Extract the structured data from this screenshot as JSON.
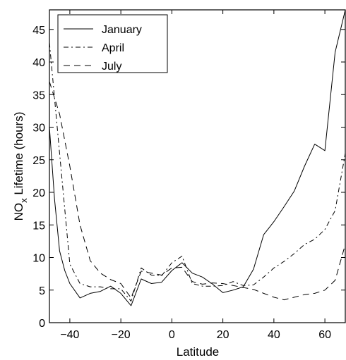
{
  "chart_data": {
    "type": "line",
    "xlabel": "Latitude",
    "ylabel": {
      "main": "NO",
      "sub": "x",
      "rest": " Lifetime (hours)"
    },
    "xlim": [
      -48,
      68
    ],
    "ylim": [
      0,
      48
    ],
    "xticks": [
      -40,
      -20,
      0,
      20,
      40,
      60
    ],
    "xtick_labels": [
      "−40",
      "−20",
      "0",
      "20",
      "40",
      "60"
    ],
    "yticks": [
      0,
      5,
      10,
      15,
      20,
      25,
      30,
      35,
      40,
      45
    ],
    "ytick_labels": [
      "0",
      "5",
      "10",
      "15",
      "20",
      "25",
      "30",
      "35",
      "40",
      "45"
    ],
    "grid": false,
    "legend_position": "top-left",
    "series": [
      {
        "name": "January",
        "style": "solid",
        "x": [
          -48,
          -46,
          -44,
          -42,
          -40,
          -36,
          -32,
          -28,
          -24,
          -20,
          -16,
          -12,
          -8,
          -4,
          0,
          4,
          8,
          12,
          16,
          20,
          24,
          28,
          32,
          36,
          40,
          44,
          48,
          52,
          56,
          60,
          64,
          68
        ],
        "y": [
          30,
          19,
          11,
          8,
          6,
          3.8,
          4.5,
          4.8,
          5.6,
          4.5,
          2.6,
          6.7,
          6.0,
          6.2,
          8.0,
          9.2,
          7.6,
          7.0,
          5.9,
          4.6,
          5.0,
          5.5,
          8.2,
          13.5,
          15.5,
          17.8,
          20.2,
          24.0,
          27.4,
          26.4,
          41.5,
          48
        ]
      },
      {
        "name": "April",
        "style": "dashdot",
        "x": [
          -48,
          -44,
          -40,
          -36,
          -32,
          -28,
          -24,
          -20,
          -16,
          -12,
          -8,
          -4,
          0,
          4,
          8,
          12,
          16,
          20,
          24,
          28,
          32,
          36,
          40,
          44,
          48,
          52,
          56,
          60,
          64,
          68
        ],
        "y": [
          43,
          26,
          9,
          6,
          5.5,
          5.5,
          5.2,
          5.2,
          3.3,
          8.4,
          7.3,
          7.2,
          9.2,
          10.2,
          6.0,
          5.6,
          5.6,
          5.7,
          6.3,
          5.7,
          5.8,
          7.0,
          8.4,
          9.4,
          10.6,
          12.0,
          12.8,
          14.3,
          17.2,
          26
        ]
      },
      {
        "name": "July",
        "style": "dashed",
        "x": [
          -48,
          -44,
          -40,
          -36,
          -32,
          -28,
          -24,
          -20,
          -16,
          -12,
          -8,
          -4,
          0,
          4,
          8,
          12,
          16,
          20,
          24,
          28,
          32,
          36,
          40,
          44,
          48,
          52,
          56,
          60,
          64,
          68
        ],
        "y": [
          37,
          32,
          24,
          15,
          9.5,
          7.6,
          6.6,
          6.0,
          3.8,
          7.9,
          7.6,
          7.3,
          8.4,
          8.5,
          6.3,
          5.9,
          6.1,
          6.0,
          5.7,
          5.4,
          5.1,
          4.5,
          3.9,
          3.5,
          3.9,
          4.3,
          4.5,
          5.0,
          6.5,
          12
        ]
      }
    ]
  }
}
